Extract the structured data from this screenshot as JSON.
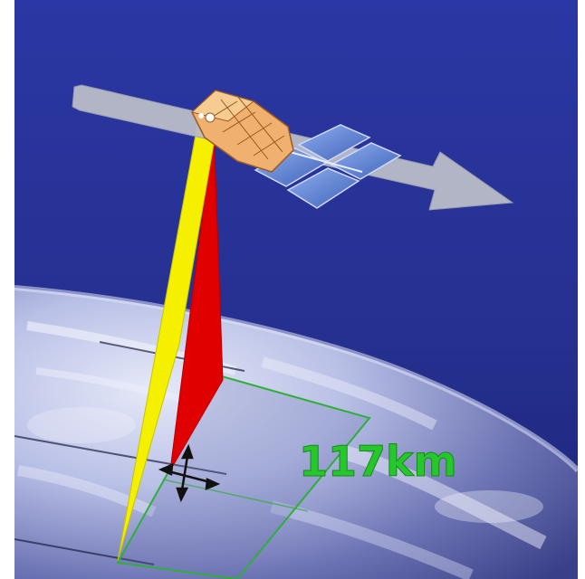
{
  "diagram": {
    "swath_width_label": "117km",
    "colors": {
      "space": "#2f3aa6",
      "space_dark": "#1c2478",
      "earth_cloud": "#c9d0ee",
      "earth_dark": "#4a5197",
      "beam_left": "#f4f000",
      "beam_right": "#e00000",
      "swath_outline": "#2fae3a",
      "label": "#26c62c",
      "orbit_arrow": "#b9bcc8",
      "satellite_body": "#f0b070",
      "solar_panel": "#5f86d8"
    },
    "icons": [
      "satellite-icon",
      "orbit-direction-arrow-icon",
      "swath-scale-cross-icon"
    ]
  }
}
